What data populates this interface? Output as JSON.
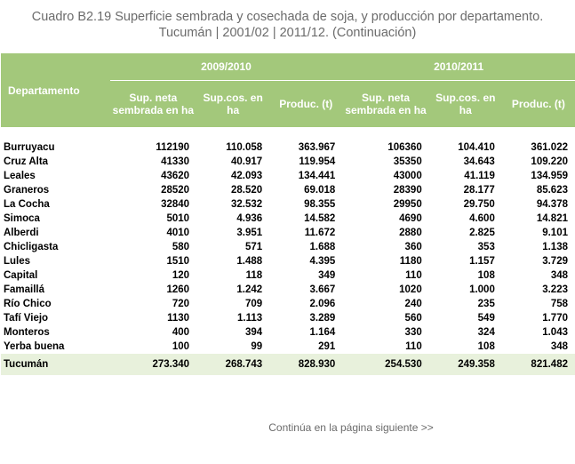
{
  "title": {
    "line1": "Cuadro B2.19 Superficie sembrada y cosechada de soja, y producción por departamento.",
    "line2": "Tucumán | 2001/02 | 2011/12. (Continuación)"
  },
  "header": {
    "departamento": "Departamento",
    "group1": "2009/2010",
    "group2": "2010/2011",
    "col_sup_neta": "Sup. neta sembrada en ha",
    "col_sup_cos": "Sup.cos. en ha",
    "col_produc": "Produc. (t)"
  },
  "rows": [
    {
      "name": "Burruyacu",
      "a": "112190",
      "b": "110.058",
      "c": "363.967",
      "d": "106360",
      "e": "104.410",
      "f": "361.022"
    },
    {
      "name": "Cruz Alta",
      "a": "41330",
      "b": "40.917",
      "c": "119.954",
      "d": "35350",
      "e": "34.643",
      "f": "109.220"
    },
    {
      "name": "Leales",
      "a": "43620",
      "b": "42.093",
      "c": "134.441",
      "d": "43000",
      "e": "41.119",
      "f": "134.959"
    },
    {
      "name": "Graneros",
      "a": "28520",
      "b": "28.520",
      "c": "69.018",
      "d": "28390",
      "e": "28.177",
      "f": "85.623"
    },
    {
      "name": "La Cocha",
      "a": "32840",
      "b": "32.532",
      "c": "98.355",
      "d": "29950",
      "e": "29.750",
      "f": "94.378"
    },
    {
      "name": "Simoca",
      "a": "5010",
      "b": "4.936",
      "c": "14.582",
      "d": "4690",
      "e": "4.600",
      "f": "14.821"
    },
    {
      "name": "Alberdi",
      "a": "4010",
      "b": "3.951",
      "c": "11.672",
      "d": "2880",
      "e": "2.825",
      "f": "9.101"
    },
    {
      "name": "Chicligasta",
      "a": "580",
      "b": "571",
      "c": "1.688",
      "d": "360",
      "e": "353",
      "f": "1.138"
    },
    {
      "name": "Lules",
      "a": "1510",
      "b": "1.488",
      "c": "4.395",
      "d": "1180",
      "e": "1.157",
      "f": "3.729"
    },
    {
      "name": "Capital",
      "a": "120",
      "b": "118",
      "c": "349",
      "d": "110",
      "e": "108",
      "f": "348"
    },
    {
      "name": "Famaillá",
      "a": "1260",
      "b": "1.242",
      "c": "3.667",
      "d": "1020",
      "e": "1.000",
      "f": "3.223"
    },
    {
      "name": "Río Chico",
      "a": "720",
      "b": "709",
      "c": "2.096",
      "d": "240",
      "e": "235",
      "f": "758"
    },
    {
      "name": "Tafí Viejo",
      "a": "1130",
      "b": "1.113",
      "c": "3.289",
      "d": "560",
      "e": "549",
      "f": "1.770"
    },
    {
      "name": "Monteros",
      "a": "400",
      "b": "394",
      "c": "1.164",
      "d": "330",
      "e": "324",
      "f": "1.043"
    },
    {
      "name": "Yerba buena",
      "a": "100",
      "b": "99",
      "c": "291",
      "d": "110",
      "e": "108",
      "f": "348"
    }
  ],
  "total": {
    "name": "Tucumán",
    "a": "273.340",
    "b": "268.743",
    "c": "828.930",
    "d": "254.530",
    "e": "249.358",
    "f": "821.482"
  },
  "footer": "Continúa en la página siguiente >>",
  "colors": {
    "header_bg": "#a3c87b",
    "total_bg": "#e8f1dc",
    "title_text": "#6b6b6b"
  }
}
